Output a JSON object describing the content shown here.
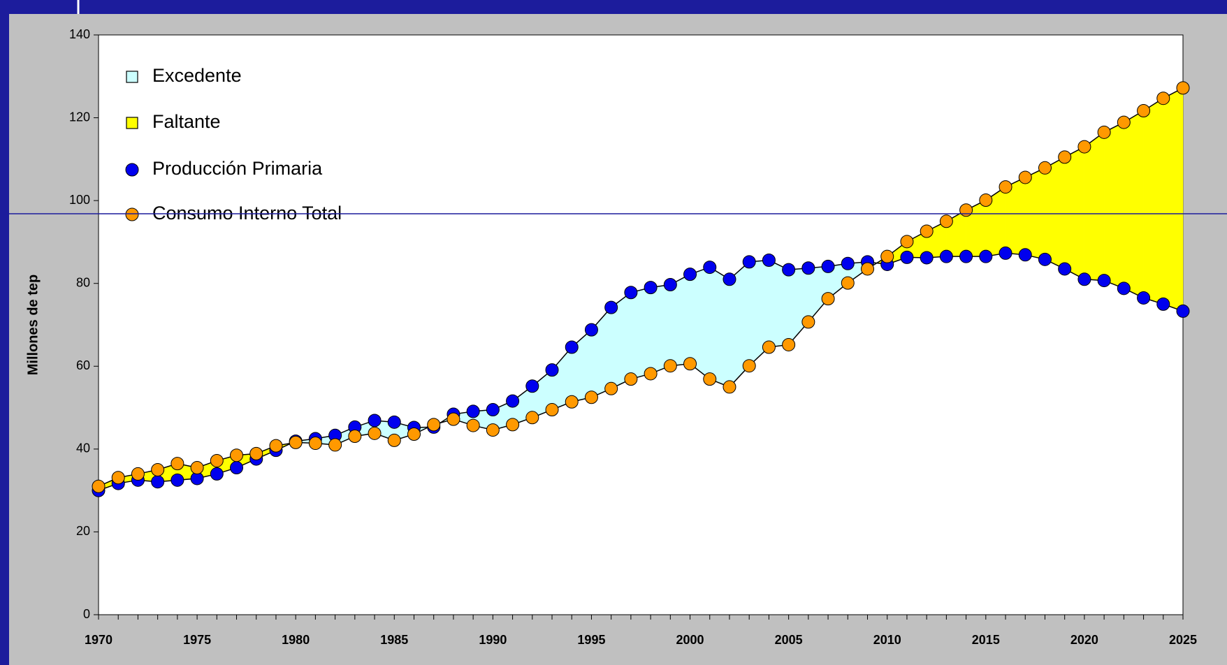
{
  "chart_data": {
    "type": "line",
    "y_label": "Millones de tep",
    "x": [
      1970,
      1971,
      1972,
      1973,
      1974,
      1975,
      1976,
      1977,
      1978,
      1979,
      1980,
      1981,
      1982,
      1983,
      1984,
      1985,
      1986,
      1987,
      1988,
      1989,
      1990,
      1991,
      1992,
      1993,
      1994,
      1995,
      1996,
      1997,
      1998,
      1999,
      2000,
      2001,
      2002,
      2003,
      2004,
      2005,
      2006,
      2007,
      2008,
      2009,
      2010,
      2011,
      2012,
      2013,
      2014,
      2015,
      2016,
      2017,
      2018,
      2019,
      2020,
      2021,
      2022,
      2023,
      2024,
      2025
    ],
    "series": [
      {
        "name": "Producción Primaria",
        "color": "#0000ee",
        "values": [
          30,
          31.7,
          32.5,
          32.1,
          32.5,
          32.9,
          34,
          35.5,
          37.6,
          39.7,
          41.9,
          42.5,
          43.3,
          45.3,
          46.9,
          46.5,
          45.2,
          45.3,
          48.4,
          49.1,
          49.5,
          51.6,
          55.2,
          59.1,
          64.6,
          68.8,
          74.2,
          77.8,
          79,
          79.7,
          82.2,
          83.9,
          81,
          85.2,
          85.6,
          83.3,
          83.7,
          84.1,
          84.8,
          85.2,
          84.6,
          86.3,
          86.2,
          86.5,
          86.5,
          86.5,
          87.3,
          86.9,
          85.8,
          83.5,
          81,
          80.7,
          78.8,
          76.5,
          75,
          73.3
        ]
      },
      {
        "name": "Consumo Interno Total",
        "color": "#ff9900",
        "values": [
          31,
          33.1,
          34,
          35,
          36.5,
          35.5,
          37.2,
          38.5,
          38.9,
          40.8,
          41.6,
          41.4,
          41,
          43.1,
          43.8,
          42.1,
          43.6,
          45.9,
          47.2,
          45.7,
          44.6,
          45.9,
          47.6,
          49.5,
          51.4,
          52.5,
          54.6,
          56.9,
          58.2,
          60.1,
          60.6,
          56.9,
          55,
          60.1,
          64.6,
          65.2,
          70.7,
          76.3,
          80.1,
          83.5,
          86.5,
          90.1,
          92.6,
          95,
          97.7,
          100.1,
          103.3,
          105.6,
          107.9,
          110.5,
          113,
          116.5,
          118.9,
          121.7,
          124.7,
          127.2
        ]
      }
    ],
    "areas": [
      {
        "name": "Excedente",
        "color": "#ccffff"
      },
      {
        "name": "Faltante",
        "color": "#ffff00"
      }
    ],
    "xlim": [
      1970,
      2025
    ],
    "xticks": [
      1970,
      1975,
      1980,
      1985,
      1990,
      1995,
      2000,
      2005,
      2010,
      2015,
      2020,
      2025
    ],
    "ylim": [
      0,
      140
    ],
    "yticks": [
      0,
      20,
      40,
      60,
      80,
      100,
      120,
      140
    ]
  }
}
